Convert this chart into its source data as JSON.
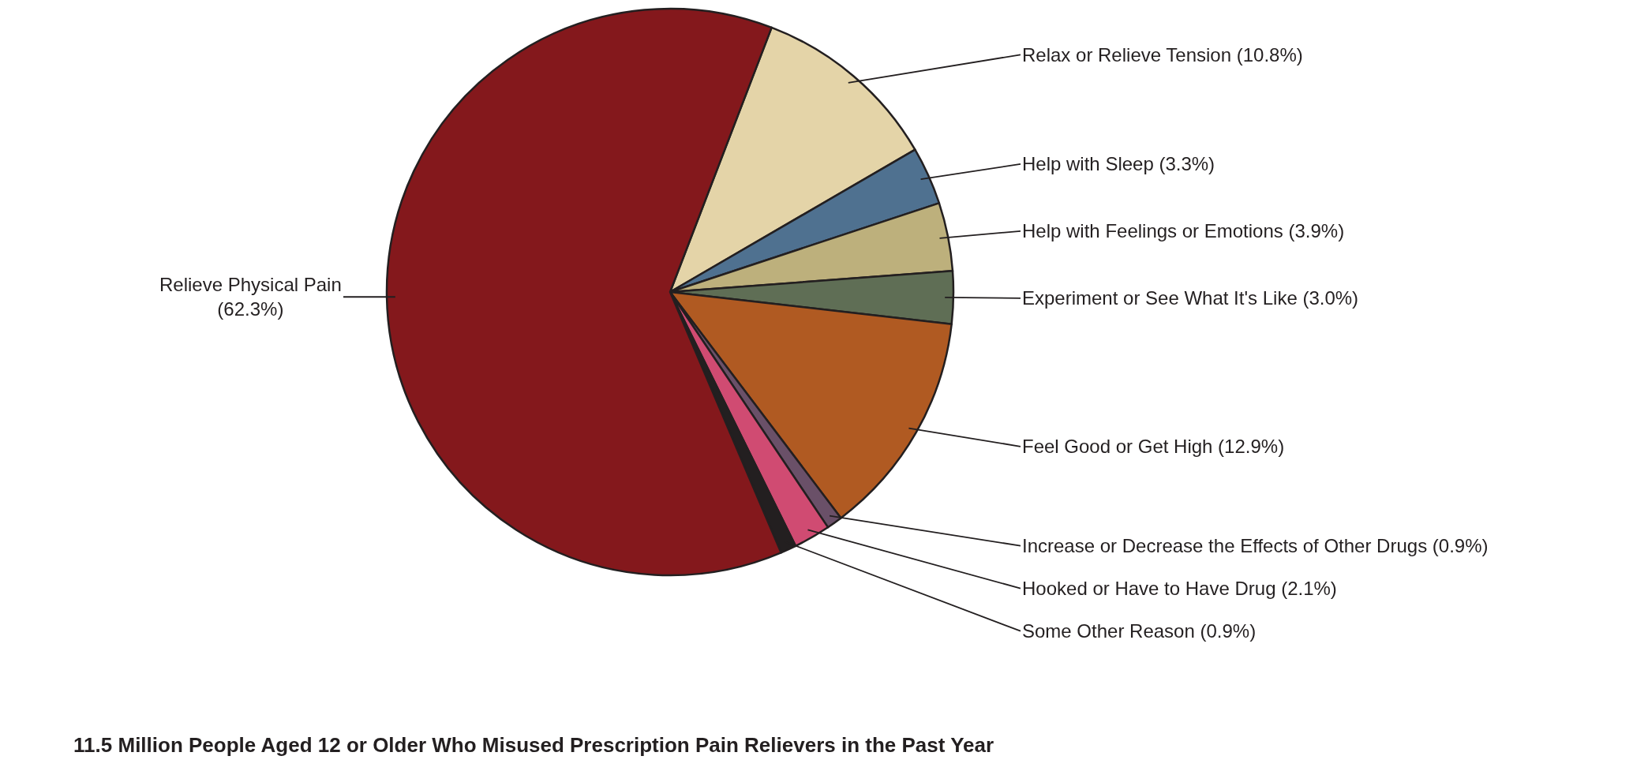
{
  "chart_data": {
    "type": "pie",
    "title": "11.5 Million People Aged 12 or Older Who Misused Prescription Pain Relievers in the Past Year",
    "categories": [
      "Relax or Relieve Tension",
      "Help with Sleep",
      "Help with Feelings or Emotions",
      "Experiment or See What It's Like",
      "Feel Good or Get High",
      "Increase or Decrease the Effects of Other Drugs",
      "Hooked or Have to Have Drug",
      "Some Other Reason",
      "Relieve Physical Pain"
    ],
    "values": [
      10.8,
      3.3,
      3.9,
      3.0,
      12.9,
      0.9,
      2.1,
      0.9,
      62.3
    ],
    "value_labels": [
      "(10.8%)",
      "(3.3%)",
      "(3.9%)",
      "(3.0%)",
      "(12.9%)",
      "(0.9%)",
      "(2.1%)",
      "(0.9%)",
      "(62.3%)"
    ],
    "colors": [
      "#e4d4a8",
      "#4f7190",
      "#bdb07c",
      "#5f6e55",
      "#b05a22",
      "#6a5068",
      "#d04b72",
      "#231f20",
      "#84181c"
    ]
  }
}
